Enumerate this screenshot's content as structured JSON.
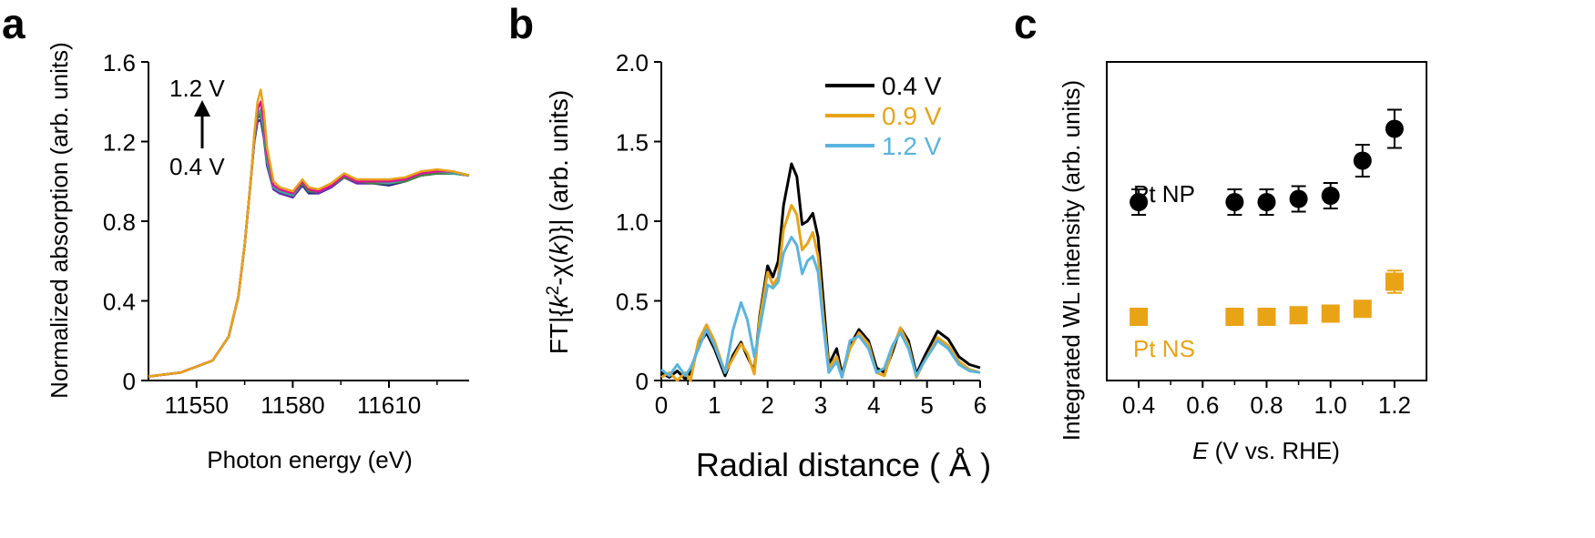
{
  "colors": {
    "black": "#000000",
    "orange": "#E8A317",
    "blue": "#5AB4E0",
    "magenta": "#E0109A",
    "purple": "#6A2BB0",
    "navy": "#2A2A8A",
    "green": "#3A8A3A",
    "teal": "#3FA79A"
  },
  "chart_data": [
    {
      "panel_label": "a",
      "type": "line",
      "xlabel": "Photon energy (eV)",
      "ylabel": "Normalized absorption (arb. units)",
      "xlim": [
        11535,
        11635
      ],
      "ylim": [
        0,
        1.6
      ],
      "xticks": [
        11550,
        11580,
        11610
      ],
      "yticks": [
        0,
        0.4,
        0.8,
        1.2,
        1.6
      ],
      "ytick_labels": [
        "0",
        "0.4",
        "0.8",
        "1.2",
        "1.6"
      ],
      "annotation_top": "1.2 V",
      "annotation_bottom": "0.4 V",
      "series": [
        {
          "color": "#2A2A8A",
          "x": [
            11535,
            11545,
            11555,
            11560,
            11563,
            11565,
            11567,
            11568,
            11569,
            11570,
            11571,
            11572,
            11574,
            11576,
            11578,
            11580,
            11583,
            11585,
            11588,
            11592,
            11596,
            11600,
            11605,
            11610,
            11615,
            11620,
            11625,
            11630,
            11635
          ],
          "y": [
            0.02,
            0.04,
            0.1,
            0.22,
            0.42,
            0.68,
            1.02,
            1.2,
            1.3,
            1.31,
            1.22,
            1.08,
            0.96,
            0.94,
            0.93,
            0.92,
            0.98,
            0.94,
            0.94,
            0.97,
            1.02,
            0.99,
            0.99,
            0.98,
            1.0,
            1.03,
            1.04,
            1.04,
            1.03
          ]
        },
        {
          "color": "#6A2BB0",
          "x": [
            11535,
            11545,
            11555,
            11560,
            11563,
            11565,
            11567,
            11568,
            11569,
            11570,
            11571,
            11572,
            11574,
            11576,
            11578,
            11580,
            11583,
            11585,
            11588,
            11592,
            11596,
            11600,
            11605,
            11610,
            11615,
            11620,
            11625,
            11630,
            11635
          ],
          "y": [
            0.02,
            0.04,
            0.1,
            0.22,
            0.42,
            0.68,
            1.02,
            1.21,
            1.32,
            1.33,
            1.24,
            1.09,
            0.96,
            0.94,
            0.93,
            0.92,
            0.99,
            0.95,
            0.94,
            0.97,
            1.02,
            0.99,
            0.99,
            0.99,
            1.0,
            1.03,
            1.04,
            1.04,
            1.03
          ]
        },
        {
          "color": "#3A8A3A",
          "x": [
            11535,
            11545,
            11555,
            11560,
            11563,
            11565,
            11567,
            11568,
            11569,
            11570,
            11571,
            11572,
            11574,
            11576,
            11578,
            11580,
            11583,
            11585,
            11588,
            11592,
            11596,
            11600,
            11605,
            11610,
            11615,
            11620,
            11625,
            11630,
            11635
          ],
          "y": [
            0.02,
            0.04,
            0.1,
            0.22,
            0.42,
            0.68,
            1.02,
            1.22,
            1.33,
            1.34,
            1.25,
            1.1,
            0.97,
            0.95,
            0.94,
            0.93,
            0.99,
            0.95,
            0.95,
            0.98,
            1.02,
            1.0,
            0.99,
            0.99,
            1.0,
            1.03,
            1.04,
            1.04,
            1.03
          ]
        },
        {
          "color": "#3FA79A",
          "x": [
            11535,
            11545,
            11555,
            11560,
            11563,
            11565,
            11567,
            11568,
            11569,
            11570,
            11571,
            11572,
            11574,
            11576,
            11578,
            11580,
            11583,
            11585,
            11588,
            11592,
            11596,
            11600,
            11605,
            11610,
            11615,
            11620,
            11625,
            11630,
            11635
          ],
          "y": [
            0.02,
            0.04,
            0.1,
            0.22,
            0.42,
            0.68,
            1.02,
            1.22,
            1.34,
            1.36,
            1.26,
            1.11,
            0.97,
            0.95,
            0.94,
            0.93,
            1.0,
            0.96,
            0.95,
            0.98,
            1.03,
            1.0,
            1.0,
            0.99,
            1.01,
            1.04,
            1.05,
            1.04,
            1.03
          ]
        },
        {
          "color": "#E0109A",
          "x": [
            11535,
            11545,
            11555,
            11560,
            11563,
            11565,
            11567,
            11568,
            11569,
            11570,
            11571,
            11572,
            11574,
            11576,
            11578,
            11580,
            11583,
            11585,
            11588,
            11592,
            11596,
            11600,
            11605,
            11610,
            11615,
            11620,
            11625,
            11630,
            11635
          ],
          "y": [
            0.02,
            0.04,
            0.1,
            0.22,
            0.42,
            0.68,
            1.02,
            1.23,
            1.36,
            1.4,
            1.3,
            1.14,
            0.98,
            0.96,
            0.95,
            0.94,
            1.0,
            0.96,
            0.95,
            0.98,
            1.03,
            1.0,
            1.0,
            1.0,
            1.01,
            1.04,
            1.05,
            1.05,
            1.03
          ]
        },
        {
          "color": "#E8A317",
          "x": [
            11535,
            11545,
            11555,
            11560,
            11563,
            11565,
            11567,
            11568,
            11569,
            11570,
            11571,
            11572,
            11574,
            11576,
            11578,
            11580,
            11583,
            11585,
            11588,
            11592,
            11596,
            11600,
            11605,
            11610,
            11615,
            11620,
            11625,
            11630,
            11635
          ],
          "y": [
            0.02,
            0.04,
            0.1,
            0.22,
            0.42,
            0.68,
            1.02,
            1.24,
            1.4,
            1.46,
            1.35,
            1.17,
            1.0,
            0.97,
            0.96,
            0.95,
            1.01,
            0.97,
            0.96,
            0.99,
            1.04,
            1.01,
            1.01,
            1.01,
            1.02,
            1.05,
            1.06,
            1.05,
            1.03
          ]
        }
      ]
    },
    {
      "panel_label": "b",
      "type": "line",
      "xlabel": "Radial distance ( Å )",
      "ylabel_parts": [
        "FT|{",
        "k",
        "2",
        "-χ(",
        "k",
        ")}| (arb. units)"
      ],
      "xlim": [
        0,
        6
      ],
      "ylim": [
        0,
        2.0
      ],
      "xticks": [
        0,
        1,
        2,
        3,
        4,
        5,
        6
      ],
      "yticks": [
        0,
        0.5,
        1.0,
        1.5,
        2.0
      ],
      "ytick_labels": [
        "0",
        "0.5",
        "1.0",
        "1.5",
        "2.0"
      ],
      "legend_placement": "top-right",
      "series": [
        {
          "name": "0.4 V",
          "color": "#000000",
          "x": [
            0,
            0.15,
            0.3,
            0.45,
            0.55,
            0.7,
            0.85,
            1.0,
            1.2,
            1.35,
            1.5,
            1.62,
            1.75,
            1.85,
            2.0,
            2.1,
            2.2,
            2.3,
            2.45,
            2.55,
            2.65,
            2.75,
            2.85,
            2.95,
            3.05,
            3.15,
            3.3,
            3.4,
            3.55,
            3.72,
            3.9,
            4.05,
            4.2,
            4.35,
            4.5,
            4.65,
            4.8,
            4.95,
            5.2,
            5.4,
            5.6,
            5.8,
            6.0
          ],
          "y": [
            0.05,
            0.02,
            0.06,
            0.01,
            0.05,
            0.22,
            0.3,
            0.2,
            0.03,
            0.16,
            0.24,
            0.15,
            0.06,
            0.4,
            0.72,
            0.65,
            0.75,
            1.1,
            1.36,
            1.28,
            0.98,
            1.0,
            1.05,
            0.9,
            0.5,
            0.1,
            0.2,
            0.04,
            0.22,
            0.32,
            0.25,
            0.08,
            0.05,
            0.18,
            0.33,
            0.25,
            0.04,
            0.15,
            0.31,
            0.26,
            0.15,
            0.1,
            0.08
          ]
        },
        {
          "name": "0.9 V",
          "color": "#E8A317",
          "x": [
            0,
            0.15,
            0.3,
            0.45,
            0.55,
            0.7,
            0.85,
            1.0,
            1.2,
            1.35,
            1.5,
            1.62,
            1.75,
            1.85,
            2.0,
            2.1,
            2.2,
            2.3,
            2.45,
            2.55,
            2.65,
            2.75,
            2.85,
            2.95,
            3.05,
            3.15,
            3.3,
            3.4,
            3.55,
            3.72,
            3.9,
            4.05,
            4.2,
            4.35,
            4.5,
            4.65,
            4.8,
            4.95,
            5.2,
            5.4,
            5.6,
            5.8,
            6.0
          ],
          "y": [
            0.02,
            0.05,
            0.0,
            0.05,
            0.0,
            0.25,
            0.35,
            0.25,
            0.05,
            0.14,
            0.23,
            0.17,
            0.04,
            0.38,
            0.68,
            0.6,
            0.65,
            0.95,
            1.1,
            1.04,
            0.82,
            0.86,
            0.93,
            0.78,
            0.4,
            0.08,
            0.15,
            0.02,
            0.2,
            0.3,
            0.23,
            0.05,
            0.03,
            0.2,
            0.33,
            0.22,
            0.02,
            0.12,
            0.27,
            0.22,
            0.12,
            0.07,
            0.05
          ]
        },
        {
          "name": "1.2 V",
          "color": "#5AB4E0",
          "x": [
            0,
            0.15,
            0.3,
            0.45,
            0.55,
            0.7,
            0.85,
            1.0,
            1.2,
            1.35,
            1.5,
            1.62,
            1.75,
            1.85,
            2.0,
            2.1,
            2.2,
            2.3,
            2.45,
            2.55,
            2.65,
            2.75,
            2.85,
            2.95,
            3.05,
            3.15,
            3.3,
            3.4,
            3.55,
            3.72,
            3.9,
            4.05,
            4.2,
            4.35,
            4.5,
            4.65,
            4.8,
            4.95,
            5.2,
            5.4,
            5.6,
            5.8,
            6.0
          ],
          "y": [
            0.07,
            0.03,
            0.1,
            0.03,
            0.08,
            0.2,
            0.32,
            0.22,
            0.05,
            0.32,
            0.49,
            0.38,
            0.15,
            0.32,
            0.6,
            0.58,
            0.62,
            0.8,
            0.9,
            0.85,
            0.67,
            0.75,
            0.78,
            0.68,
            0.35,
            0.05,
            0.12,
            0.02,
            0.25,
            0.28,
            0.2,
            0.05,
            0.08,
            0.22,
            0.3,
            0.2,
            0.03,
            0.12,
            0.25,
            0.2,
            0.1,
            0.06,
            0.05
          ]
        }
      ]
    },
    {
      "panel_label": "c",
      "type": "scatter",
      "xlabel_italic": "E",
      "xlabel_rest": " (V vs. RHE)",
      "ylabel": "Integrated WL intensity (arb. units)",
      "xlim": [
        0.3,
        1.3
      ],
      "ylim": [
        0,
        1
      ],
      "xticks": [
        0.4,
        0.6,
        0.8,
        1.0,
        1.2
      ],
      "xtick_labels": [
        "0.4",
        "0.6",
        "0.8",
        "1.0",
        "1.2"
      ],
      "series": [
        {
          "name": "Pt NP",
          "color": "#000000",
          "marker": "circle",
          "x": [
            0.4,
            0.7,
            0.8,
            0.9,
            1.0,
            1.1,
            1.2
          ],
          "y": [
            0.56,
            0.56,
            0.56,
            0.57,
            0.58,
            0.69,
            0.79
          ],
          "err": [
            0.04,
            0.04,
            0.04,
            0.04,
            0.04,
            0.05,
            0.06
          ]
        },
        {
          "name": "Pt NS",
          "color": "#E8A317",
          "marker": "square",
          "x": [
            0.4,
            0.7,
            0.8,
            0.9,
            1.0,
            1.1,
            1.2
          ],
          "y": [
            0.2,
            0.2,
            0.2,
            0.205,
            0.21,
            0.225,
            0.31
          ],
          "err": [
            0.0,
            0.0,
            0.0,
            0.0,
            0.0,
            0.02,
            0.035
          ]
        }
      ]
    }
  ]
}
